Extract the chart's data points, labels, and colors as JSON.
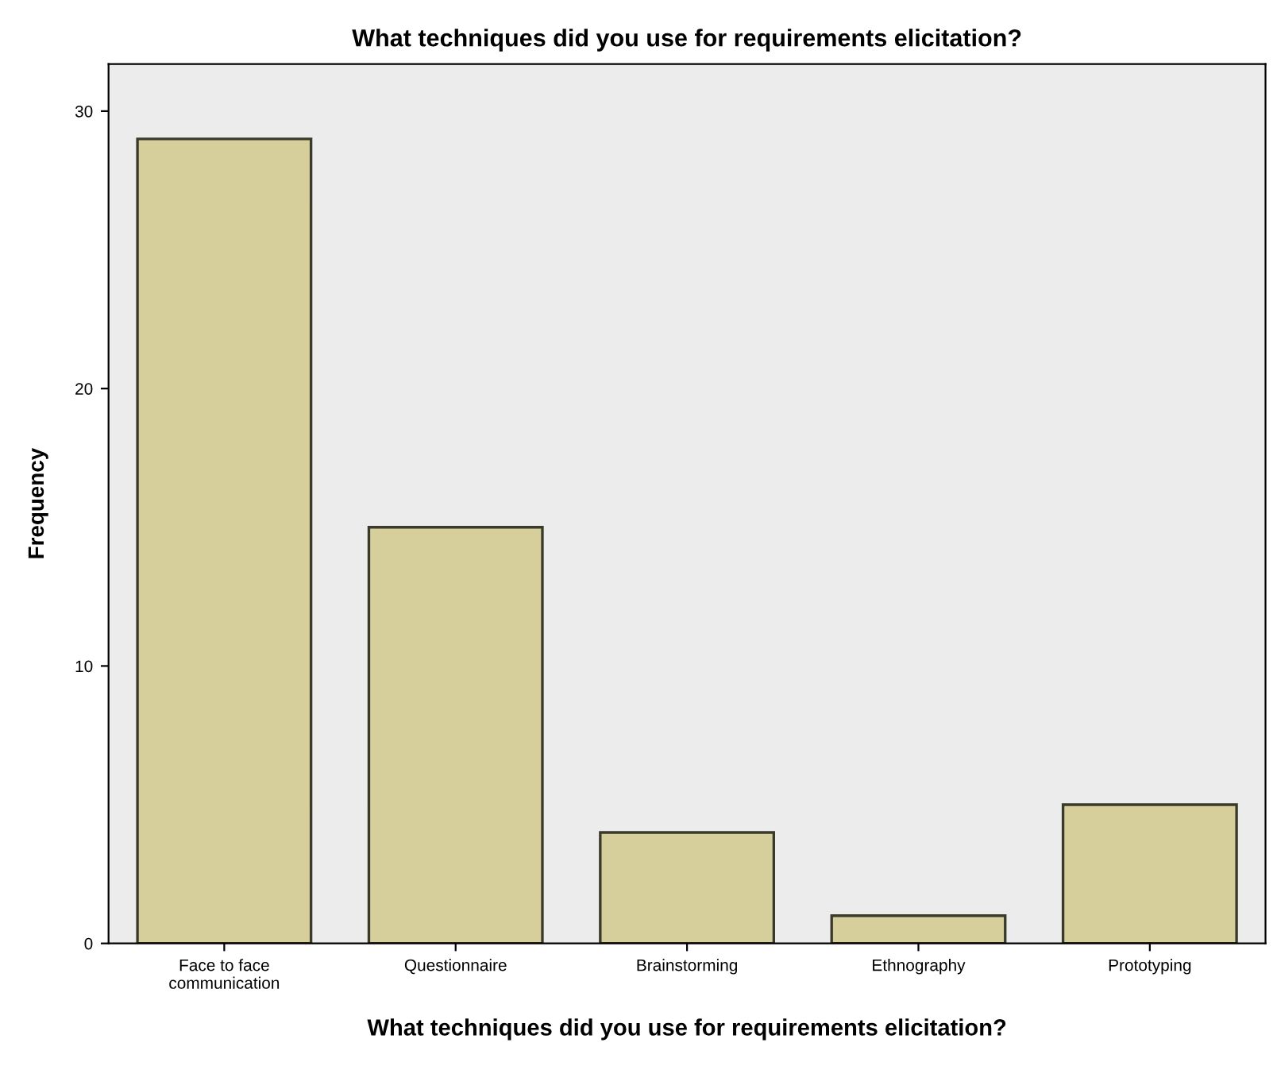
{
  "chart_data": {
    "type": "bar",
    "title": "What techniques did you use for requirements elicitation?",
    "xlabel": "What techniques did you use for requirements elicitation?",
    "ylabel": "Frequency",
    "categories": [
      "Face to face\ncommunication",
      "Questionnaire",
      "Brainstorming",
      "Ethnography",
      "Prototyping"
    ],
    "values": [
      29,
      15,
      4,
      1,
      5
    ],
    "color": "#d6cf9c",
    "ylim": [
      0,
      31.7
    ],
    "yticks": [
      0,
      10,
      20,
      30
    ],
    "grid": false
  }
}
